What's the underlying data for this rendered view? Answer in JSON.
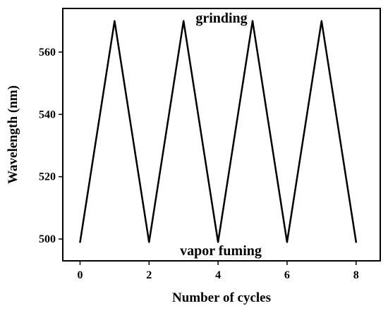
{
  "chart_data": {
    "type": "line",
    "title": "",
    "xlabel": "Number of cycles",
    "ylabel": "Wavelength (nm)",
    "xlim": [
      -0.5,
      8.7
    ],
    "ylim": [
      493,
      574
    ],
    "xticks": [
      0,
      2,
      4,
      6,
      8
    ],
    "yticks": [
      500,
      520,
      540,
      560
    ],
    "xtick_labels": [
      "0",
      "2",
      "4",
      "6",
      "8"
    ],
    "ytick_labels": [
      "500",
      "520",
      "540",
      "560"
    ],
    "grid": false,
    "series": [
      {
        "x": [
          0,
          1,
          2,
          3,
          4,
          5,
          6,
          7,
          8
        ],
        "values": [
          499,
          570,
          499,
          570,
          499,
          570,
          499,
          570,
          499
        ]
      }
    ],
    "annotations": [
      {
        "text": "grinding",
        "position": "top-center"
      },
      {
        "text": "vapor fuming",
        "position": "bottom-center"
      }
    ],
    "colors": {
      "line": "#000000",
      "axes": "#000000"
    }
  }
}
